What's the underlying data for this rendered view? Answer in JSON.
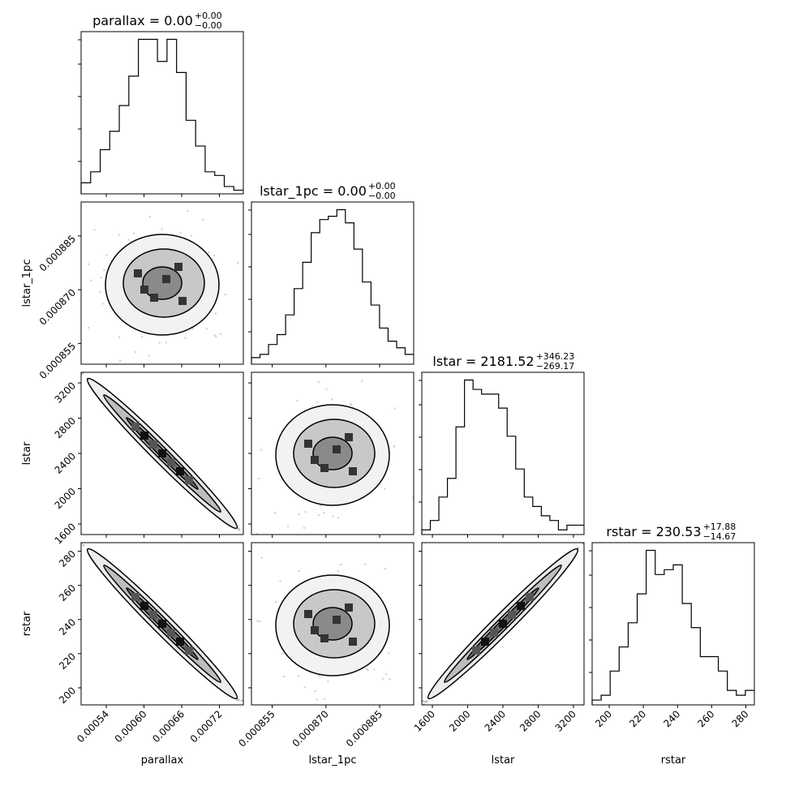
{
  "chart_data": {
    "type": "corner",
    "parameters": [
      "parallax",
      "lstar_1pc",
      "lstar",
      "rstar"
    ],
    "titles": [
      {
        "param": "parallax",
        "prefix": "parallax = ",
        "value": "0.00",
        "plus": "+0.00",
        "minus": "−0.00"
      },
      {
        "param": "lstar_1pc",
        "prefix": "lstar_1pc = ",
        "value": "0.00",
        "plus": "+0.00",
        "minus": "−0.00"
      },
      {
        "param": "lstar",
        "prefix": "lstar = ",
        "value": "2181.52",
        "plus": "+346.23",
        "minus": "−269.17"
      },
      {
        "param": "rstar",
        "prefix": "rstar = ",
        "value": "230.53",
        "plus": "+17.88",
        "minus": "−14.67"
      }
    ],
    "axes": [
      {
        "name": "parallax",
        "label": "parallax",
        "range": [
          0.0005,
          0.000758
        ],
        "ticks": [
          0.00054,
          0.0006,
          0.00066,
          0.00072
        ],
        "tick_labels": [
          "0.00054",
          "0.00060",
          "0.00066",
          "0.00072"
        ]
      },
      {
        "name": "lstar_1pc",
        "label": "lstar_1pc",
        "range": [
          0.0008492,
          0.0008945
        ],
        "ticks": [
          0.000855,
          0.00087,
          0.000885
        ],
        "tick_labels": [
          "0.000855",
          "0.000870",
          "0.000885"
        ]
      },
      {
        "name": "lstar",
        "label": "lstar",
        "range": [
          1480,
          3320
        ],
        "ticks": [
          1600,
          2000,
          2400,
          2800,
          3200
        ],
        "tick_labels": [
          "1600",
          "2000",
          "2400",
          "2800",
          "3200"
        ]
      },
      {
        "name": "rstar",
        "label": "rstar",
        "range": [
          190,
          285
        ],
        "ticks": [
          200,
          220,
          240,
          260,
          280
        ],
        "tick_labels": [
          "200",
          "220",
          "240",
          "260",
          "280"
        ]
      }
    ],
    "histograms": [
      {
        "param": "parallax",
        "counts": [
          3,
          6,
          12,
          17,
          24,
          32,
          42,
          42,
          36,
          42,
          33,
          20,
          13,
          6,
          5,
          2,
          1
        ]
      },
      {
        "param": "lstar_1pc",
        "counts": [
          2,
          3,
          6,
          9,
          15,
          23,
          31,
          40,
          44,
          45,
          47,
          43,
          35,
          25,
          18,
          11,
          7,
          5,
          3
        ]
      },
      {
        "param": "lstar",
        "counts": [
          1,
          3,
          8,
          12,
          23,
          33,
          31,
          30,
          30,
          27,
          21,
          14,
          8,
          6,
          4,
          3,
          1,
          2,
          2
        ]
      },
      {
        "param": "rstar",
        "counts": [
          1,
          2,
          7,
          12,
          17,
          23,
          32,
          27,
          28,
          29,
          21,
          16,
          10,
          10,
          7,
          3,
          2,
          3
        ]
      }
    ],
    "correlations": [
      {
        "row": "lstar_1pc",
        "col": "parallax",
        "rho": 0.0
      },
      {
        "row": "lstar",
        "col": "parallax",
        "rho": -0.985
      },
      {
        "row": "lstar",
        "col": "lstar_1pc",
        "rho": 0.02
      },
      {
        "row": "rstar",
        "col": "parallax",
        "rho": -0.985
      },
      {
        "row": "rstar",
        "col": "lstar_1pc",
        "rho": 0.02
      },
      {
        "row": "rstar",
        "col": "lstar",
        "rho": 0.995
      }
    ],
    "grid": false
  }
}
